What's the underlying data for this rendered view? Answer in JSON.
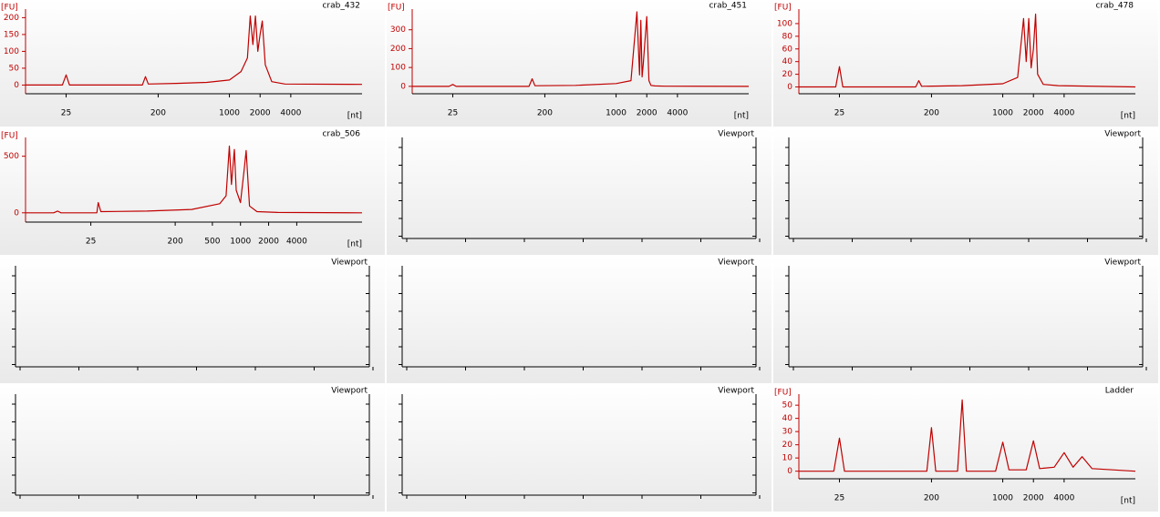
{
  "chart_data": [
    {
      "type": "line",
      "title": "crab_432",
      "ylabel": "[FU]",
      "xlabel": "[nt]",
      "xscale": "log",
      "color": "#c00000",
      "x": [
        10,
        23,
        25,
        27,
        140,
        150,
        160,
        300,
        600,
        1000,
        1300,
        1500,
        1600,
        1700,
        1800,
        1900,
        2000,
        2100,
        2250,
        2600,
        3500,
        20000
      ],
      "values": [
        0,
        0,
        30,
        0,
        0,
        25,
        3,
        5,
        8,
        15,
        40,
        80,
        205,
        120,
        205,
        100,
        150,
        190,
        60,
        10,
        3,
        2
      ],
      "xlim": [
        10,
        20000
      ],
      "ylim": [
        -15,
        220
      ],
      "xticks": [
        25,
        200,
        1000,
        2000,
        4000
      ],
      "yticks": [
        0,
        50,
        100,
        150,
        200
      ]
    },
    {
      "type": "line",
      "title": "crab_451",
      "ylabel": "[FU]",
      "xlabel": "[nt]",
      "xscale": "log",
      "color": "#c00000",
      "x": [
        10,
        23,
        25,
        27,
        140,
        150,
        160,
        400,
        1000,
        1400,
        1600,
        1700,
        1750,
        1800,
        1850,
        2000,
        2100,
        2200,
        2400,
        3000,
        20000
      ],
      "values": [
        0,
        0,
        10,
        0,
        0,
        40,
        3,
        5,
        15,
        30,
        395,
        60,
        350,
        50,
        120,
        370,
        30,
        5,
        2,
        1,
        0
      ],
      "xlim": [
        10,
        20000
      ],
      "ylim": [
        -20,
        400
      ],
      "xticks": [
        25,
        200,
        1000,
        2000,
        4000
      ],
      "yticks": [
        0,
        100,
        200,
        300
      ]
    },
    {
      "type": "line",
      "title": "crab_478",
      "ylabel": "[FU]",
      "xlabel": "[nt]",
      "xscale": "log",
      "color": "#c00000",
      "x": [
        10,
        23,
        25,
        27,
        140,
        150,
        160,
        400,
        1000,
        1400,
        1600,
        1700,
        1800,
        1900,
        2000,
        2100,
        2200,
        2500,
        3500,
        20000
      ],
      "values": [
        0,
        0,
        32,
        0,
        0,
        10,
        1,
        2,
        5,
        15,
        108,
        40,
        108,
        30,
        60,
        115,
        20,
        4,
        2,
        0
      ],
      "xlim": [
        10,
        20000
      ],
      "ylim": [
        -5,
        120
      ],
      "xticks": [
        25,
        200,
        1000,
        2000,
        4000
      ],
      "yticks": [
        0,
        20,
        40,
        60,
        80,
        100
      ]
    },
    {
      "type": "line",
      "title": "crab_506",
      "ylabel": "[FU]",
      "xlabel": "[nt]",
      "xscale": "log",
      "color": "#c00000",
      "x": [
        5,
        10,
        11,
        12,
        29,
        30,
        32,
        100,
        300,
        600,
        700,
        760,
        800,
        860,
        900,
        1000,
        1100,
        1150,
        1250,
        1500,
        2500,
        20000
      ],
      "values": [
        0,
        0,
        15,
        0,
        0,
        90,
        10,
        15,
        30,
        80,
        150,
        590,
        250,
        560,
        200,
        90,
        400,
        550,
        60,
        10,
        3,
        0
      ],
      "xlim": [
        5,
        20000
      ],
      "ylim": [
        -50,
        650
      ],
      "xticks": [
        25,
        200,
        500,
        1000,
        2000,
        4000
      ],
      "yticks": [
        0,
        500
      ]
    },
    {
      "type": "viewport",
      "title": "Viewport"
    },
    {
      "type": "viewport",
      "title": "Viewport"
    },
    {
      "type": "viewport",
      "title": "Viewport"
    },
    {
      "type": "viewport",
      "title": "Viewport"
    },
    {
      "type": "viewport",
      "title": "Viewport"
    },
    {
      "type": "viewport",
      "title": "Viewport"
    },
    {
      "type": "viewport",
      "title": "Viewport"
    },
    {
      "type": "line",
      "title": "Ladder",
      "ylabel": "[FU]",
      "xlabel": "[nt]",
      "xscale": "log",
      "color": "#c00000",
      "x": [
        10,
        22,
        25,
        28,
        180,
        200,
        220,
        360,
        400,
        440,
        850,
        1000,
        1150,
        1700,
        2000,
        2300,
        3200,
        4000,
        4900,
        6000,
        7500,
        20000
      ],
      "values": [
        0,
        0,
        25,
        0,
        0,
        33,
        0,
        0,
        54,
        0,
        0,
        22,
        1,
        1,
        23,
        2,
        3,
        14,
        3,
        11,
        2,
        0
      ],
      "xlim": [
        10,
        20000
      ],
      "ylim": [
        -3,
        57
      ],
      "xticks": [
        25,
        200,
        1000,
        2000,
        4000
      ],
      "yticks": [
        0,
        10,
        20,
        30,
        40,
        50
      ]
    }
  ]
}
